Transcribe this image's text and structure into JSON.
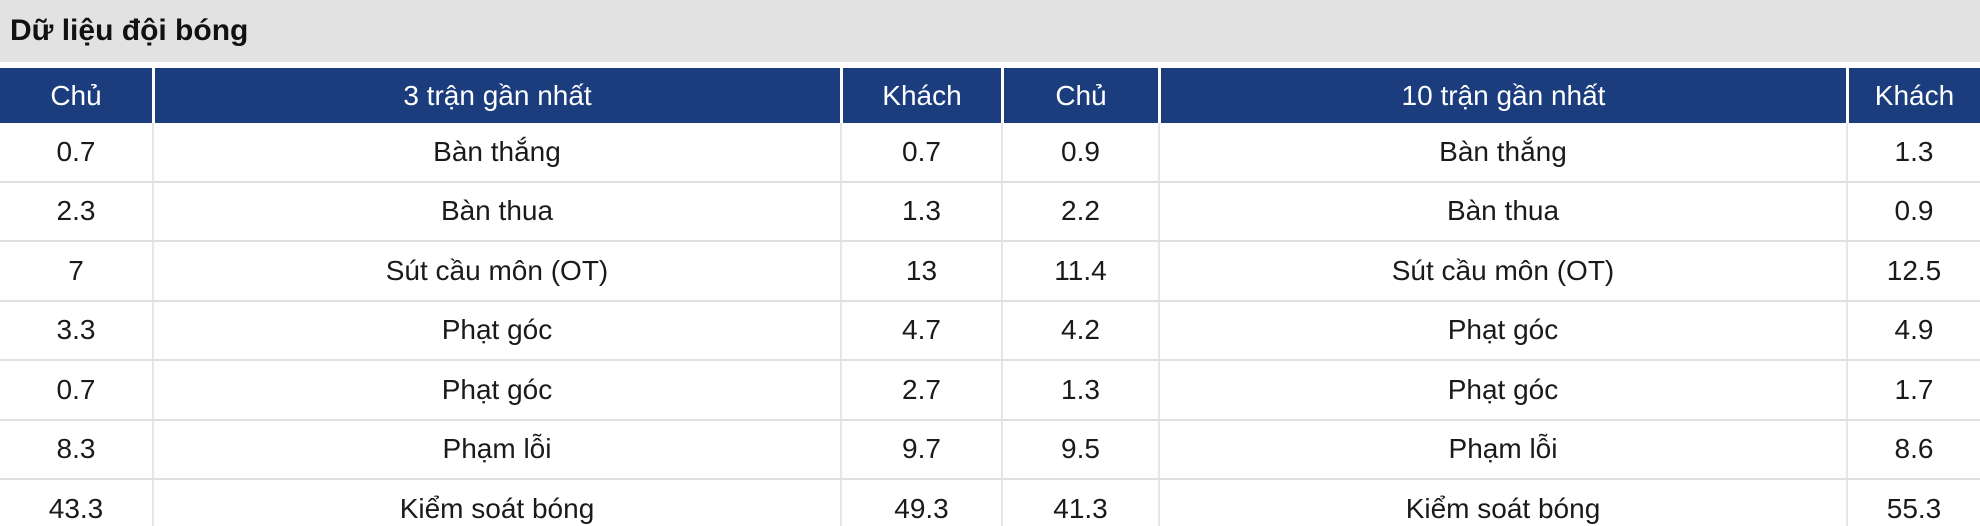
{
  "title": "Dữ liệu đội bóng",
  "colors": {
    "header_bg": "#1b3c7d",
    "header_text": "#ffffff",
    "title_bar_bg": "#e2e2e2",
    "divider": "#e0e0e0",
    "body_text": "#1a1a1a"
  },
  "table": {
    "headers": [
      "Chủ",
      "3 trận gần nhất",
      "Khách",
      "Chủ",
      "10 trận gần nhất",
      "Khách"
    ],
    "rows": [
      [
        "0.7",
        "Bàn thắng",
        "0.7",
        "0.9",
        "Bàn thắng",
        "1.3"
      ],
      [
        "2.3",
        "Bàn thua",
        "1.3",
        "2.2",
        "Bàn thua",
        "0.9"
      ],
      [
        "7",
        "Sút cầu môn (OT)",
        "13",
        "11.4",
        "Sút cầu môn (OT)",
        "12.5"
      ],
      [
        "3.3",
        "Phạt góc",
        "4.7",
        "4.2",
        "Phạt góc",
        "4.9"
      ],
      [
        "0.7",
        "Phạt góc",
        "2.7",
        "1.3",
        "Phạt góc",
        "1.7"
      ],
      [
        "8.3",
        "Phạm lỗi",
        "9.7",
        "9.5",
        "Phạm lỗi",
        "8.6"
      ],
      [
        "43.3",
        "Kiểm soát bóng",
        "49.3",
        "41.3",
        "Kiểm soát bóng",
        "55.3"
      ]
    ]
  }
}
